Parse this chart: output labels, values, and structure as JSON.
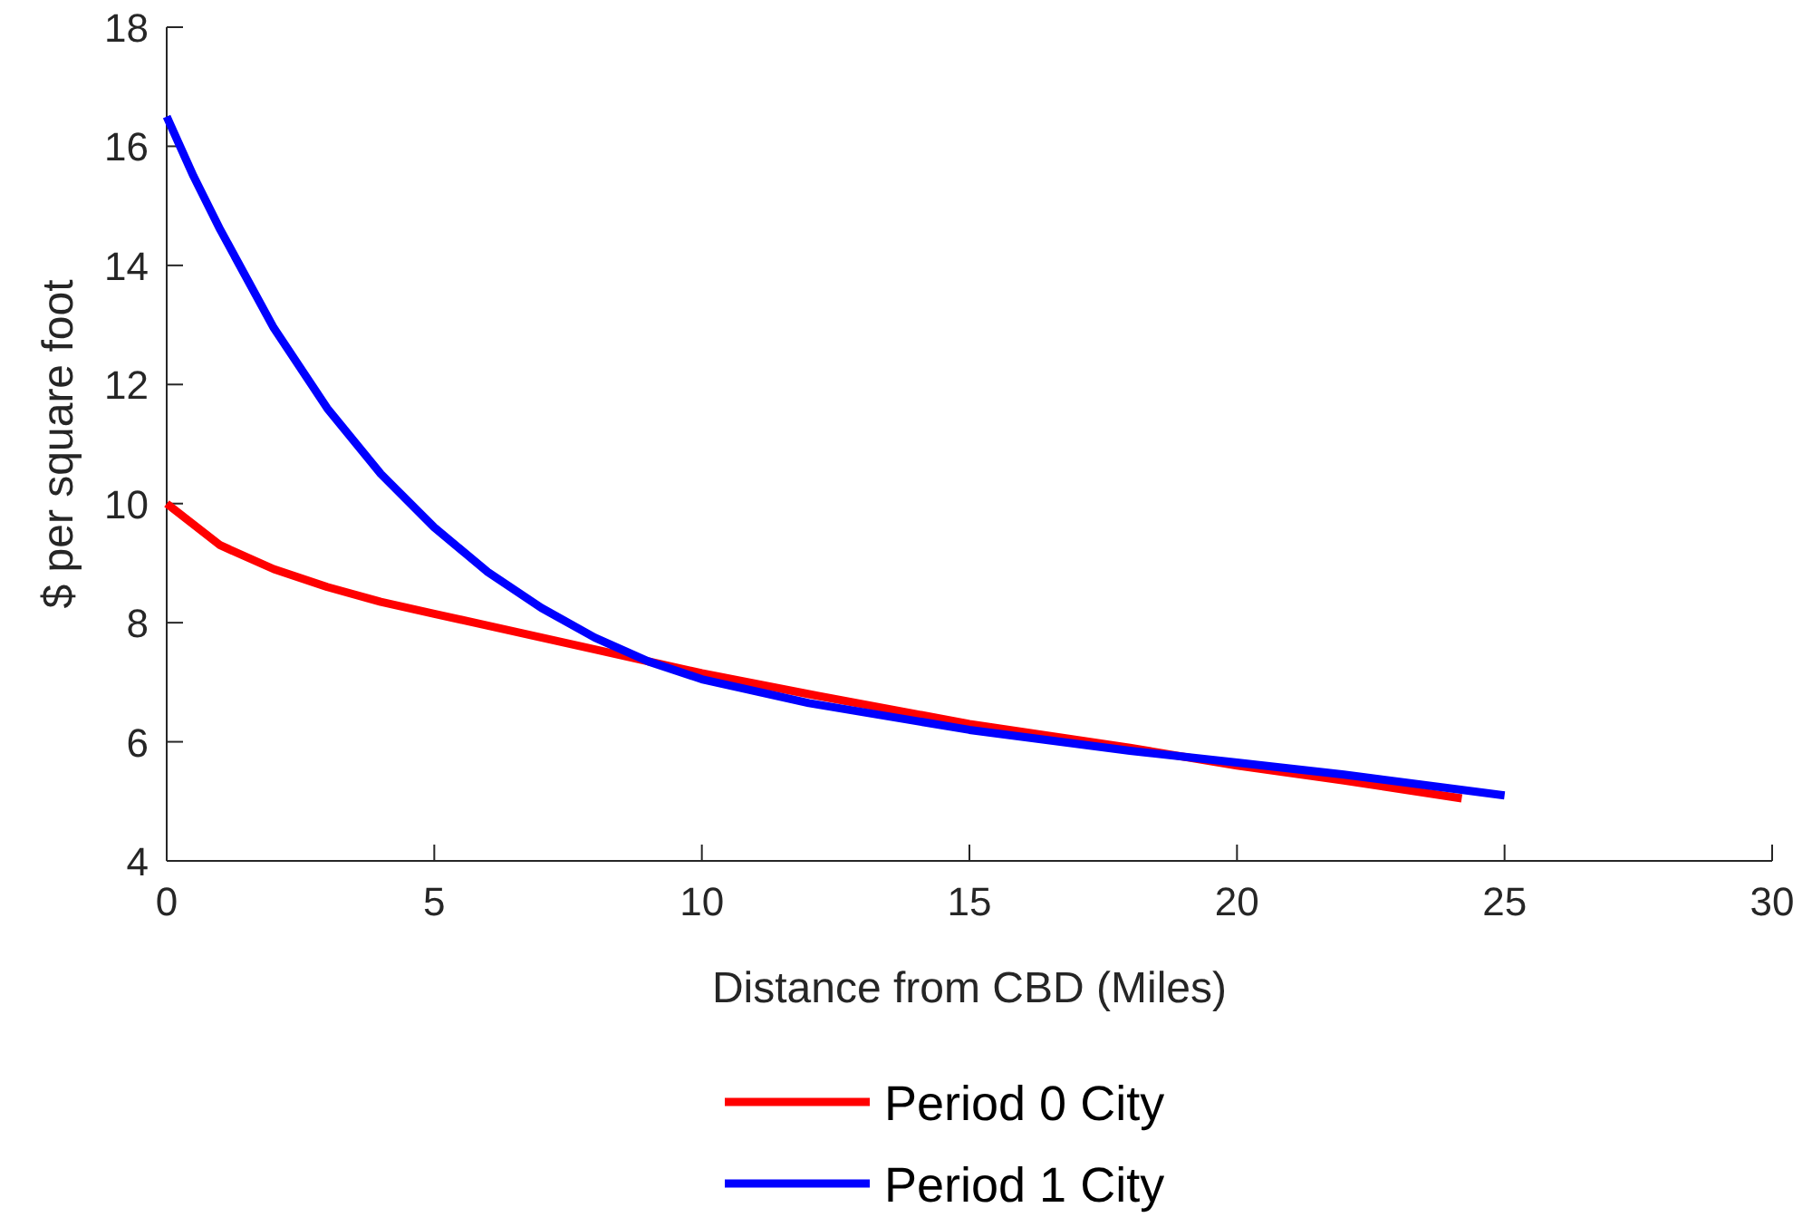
{
  "chart_data": {
    "type": "line",
    "xlabel": "Distance from CBD (Miles)",
    "ylabel": "$ per square foot",
    "xlim": [
      0,
      30
    ],
    "xticks": [
      0,
      5,
      10,
      15,
      20,
      25,
      30
    ],
    "ylim": [
      4,
      18
    ],
    "yticks": [
      4,
      6,
      8,
      10,
      12,
      14,
      16,
      18
    ],
    "legend": "bottom",
    "grid": false,
    "series": [
      {
        "name": "Period 0 City",
        "color": "#ff0000",
        "x": [
          0,
          1,
          2,
          3,
          4,
          5,
          6,
          8,
          10,
          12,
          15,
          18,
          20,
          22,
          24.2
        ],
        "values": [
          10,
          9.3,
          8.9,
          8.6,
          8.35,
          8.15,
          7.95,
          7.55,
          7.15,
          6.8,
          6.3,
          5.9,
          5.6,
          5.35,
          5.05
        ]
      },
      {
        "name": "Period 1 City",
        "color": "#0000ff",
        "x": [
          0,
          0.5,
          1,
          2,
          3,
          4,
          5,
          6,
          7,
          8,
          9,
          10,
          12,
          15,
          18,
          20,
          22,
          25
        ],
        "values": [
          16.5,
          15.5,
          14.6,
          12.95,
          11.6,
          10.5,
          9.6,
          8.85,
          8.25,
          7.75,
          7.35,
          7.05,
          6.65,
          6.2,
          5.85,
          5.65,
          5.45,
          5.1
        ]
      }
    ]
  }
}
